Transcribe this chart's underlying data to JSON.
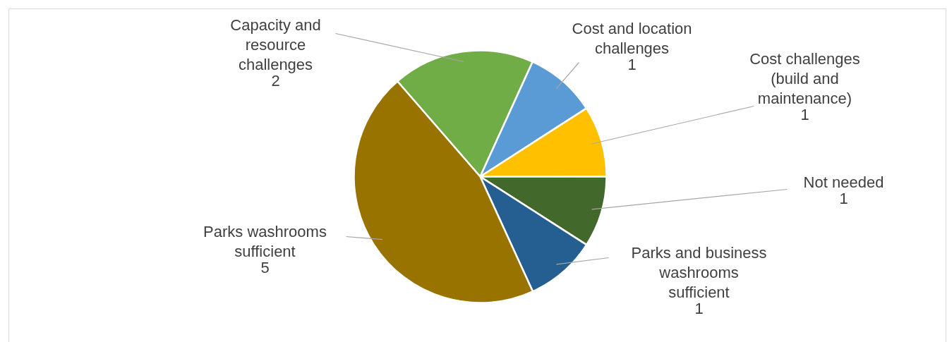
{
  "chart_data": {
    "type": "pie",
    "categories": [
      "Capacity and resource challenges",
      "Cost and location challenges",
      "Cost challenges (build and maintenance)",
      "Not needed",
      "Parks and business washrooms sufficient",
      "Parks washrooms sufficient"
    ],
    "values": [
      2,
      1,
      1,
      1,
      1,
      5
    ],
    "colors": [
      "#70ad47",
      "#5b9bd5",
      "#ffc000",
      "#43682b",
      "#255e91",
      "#997300"
    ],
    "data_labels": true
  }
}
